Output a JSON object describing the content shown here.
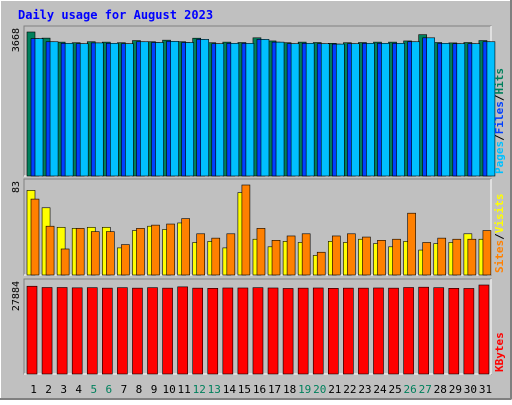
{
  "title": "Daily usage for August 2023",
  "colors": {
    "background": "#c0c0c0",
    "title": "#0000ff",
    "border_light": "#ffffff",
    "border_dark": "#808080",
    "hits": "#00805c",
    "files": "#0040ff",
    "pages": "#00c0ff",
    "visits": "#ffff00",
    "sites": "#ff8000",
    "kbytes": "#ff0000",
    "weekday_label": "#000000",
    "weekend_label": "#00805c"
  },
  "chart_data": [
    {
      "type": "bar",
      "panel": "hits-files-pages",
      "y_max_label": "3668",
      "ylim": [
        0,
        3668
      ],
      "legend": [
        {
          "name": "Pages",
          "color": "#00c0ff"
        },
        {
          "name": "Files",
          "color": "#0040ff"
        },
        {
          "name": "Hits",
          "color": "#00805c"
        }
      ],
      "legend_separator": "/",
      "categories": [
        "1",
        "2",
        "3",
        "4",
        "5",
        "6",
        "7",
        "8",
        "9",
        "10",
        "11",
        "12",
        "13",
        "14",
        "15",
        "16",
        "17",
        "18",
        "19",
        "20",
        "21",
        "22",
        "23",
        "24",
        "25",
        "26",
        "27",
        "28",
        "29",
        "30",
        "31"
      ],
      "series": [
        {
          "name": "Hits",
          "values": [
            3668,
            3512,
            3410,
            3395,
            3420,
            3410,
            3395,
            3450,
            3420,
            3460,
            3420,
            3510,
            3395,
            3410,
            3400,
            3520,
            3440,
            3395,
            3410,
            3400,
            3380,
            3395,
            3400,
            3410,
            3410,
            3440,
            3600,
            3400,
            3390,
            3400,
            3450
          ]
        },
        {
          "name": "Files",
          "values": [
            3500,
            3420,
            3380,
            3370,
            3390,
            3380,
            3370,
            3420,
            3400,
            3430,
            3400,
            3480,
            3370,
            3380,
            3380,
            3480,
            3410,
            3370,
            3380,
            3370,
            3360,
            3370,
            3380,
            3380,
            3380,
            3420,
            3520,
            3380,
            3370,
            3370,
            3420
          ]
        },
        {
          "name": "Pages",
          "values": [
            3500,
            3420,
            3380,
            3370,
            3390,
            3380,
            3370,
            3420,
            3400,
            3430,
            3400,
            3480,
            3370,
            3380,
            3380,
            3480,
            3410,
            3370,
            3380,
            3370,
            3360,
            3370,
            3380,
            3380,
            3380,
            3420,
            3520,
            3380,
            3370,
            3370,
            3420
          ]
        }
      ]
    },
    {
      "type": "bar",
      "panel": "visits-sites",
      "y_max_label": "83",
      "ylim": [
        0,
        83
      ],
      "legend": [
        {
          "name": "Sites",
          "color": "#ff8000"
        },
        {
          "name": "Visits",
          "color": "#ffff00"
        }
      ],
      "legend_separator": "/",
      "categories": [
        "1",
        "2",
        "3",
        "4",
        "5",
        "6",
        "7",
        "8",
        "9",
        "10",
        "11",
        "12",
        "13",
        "14",
        "15",
        "16",
        "17",
        "18",
        "19",
        "20",
        "21",
        "22",
        "23",
        "24",
        "25",
        "26",
        "27",
        "28",
        "29",
        "30",
        "31"
      ],
      "series": [
        {
          "name": "Visits",
          "values": [
            78,
            62,
            44,
            43,
            44,
            44,
            25,
            41,
            45,
            42,
            48,
            30,
            31,
            25,
            76,
            33,
            26,
            31,
            30,
            18,
            31,
            30,
            33,
            29,
            26,
            31,
            23,
            29,
            30,
            38,
            33
          ]
        },
        {
          "name": "Sites",
          "values": [
            70,
            45,
            24,
            43,
            40,
            40,
            28,
            43,
            46,
            47,
            52,
            38,
            34,
            38,
            83,
            43,
            32,
            36,
            38,
            21,
            36,
            38,
            35,
            32,
            33,
            57,
            30,
            34,
            33,
            33,
            41
          ]
        }
      ]
    },
    {
      "type": "bar",
      "panel": "kbytes",
      "y_max_label": "27884",
      "ylim": [
        0,
        27884
      ],
      "legend": [
        {
          "name": "KBytes",
          "color": "#ff0000"
        }
      ],
      "categories": [
        "1",
        "2",
        "3",
        "4",
        "5",
        "6",
        "7",
        "8",
        "9",
        "10",
        "11",
        "12",
        "13",
        "14",
        "15",
        "16",
        "17",
        "18",
        "19",
        "20",
        "21",
        "22",
        "23",
        "24",
        "25",
        "26",
        "27",
        "28",
        "29",
        "30",
        "31"
      ],
      "series": [
        {
          "name": "KBytes",
          "values": [
            27500,
            27100,
            27100,
            27000,
            27050,
            26900,
            27050,
            26900,
            27050,
            26900,
            27300,
            26900,
            26850,
            26950,
            26950,
            27050,
            26950,
            26800,
            26900,
            26950,
            26850,
            26900,
            26900,
            26950,
            26900,
            27100,
            27200,
            27050,
            26850,
            26800,
            27884
          ]
        }
      ]
    }
  ],
  "x_labels": [
    "1",
    "2",
    "3",
    "4",
    "5",
    "6",
    "7",
    "8",
    "9",
    "10",
    "11",
    "12",
    "13",
    "14",
    "15",
    "16",
    "17",
    "18",
    "19",
    "20",
    "21",
    "22",
    "23",
    "24",
    "25",
    "26",
    "27",
    "28",
    "29",
    "30",
    "31"
  ],
  "weekend_days": [
    "5",
    "6",
    "12",
    "13",
    "19",
    "20",
    "26",
    "27"
  ]
}
